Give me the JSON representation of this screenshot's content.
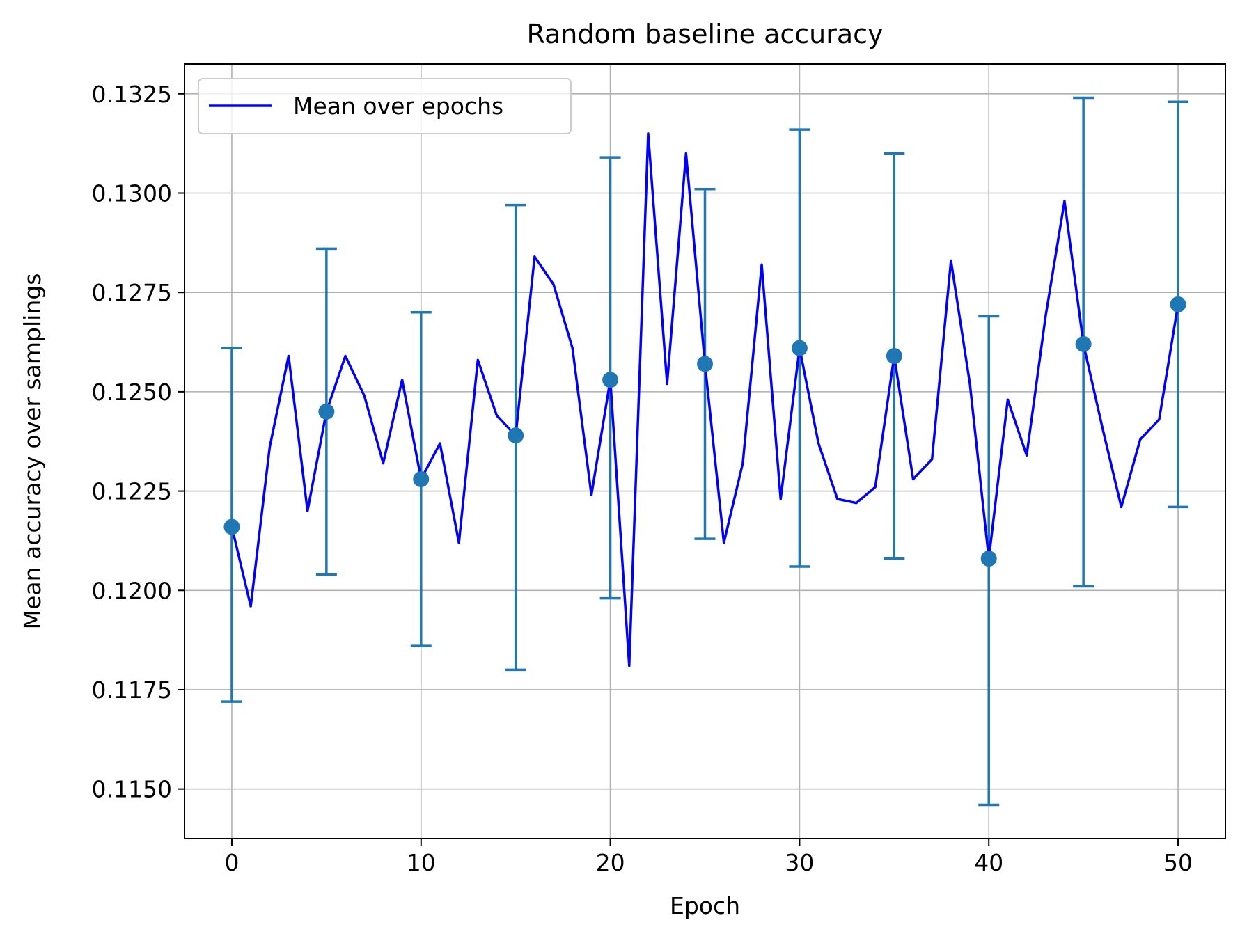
{
  "chart_data": {
    "type": "line",
    "title": "Random baseline accuracy",
    "xlabel": "Epoch",
    "ylabel": "Mean accuracy over samplings",
    "xlim": [
      -2.5,
      52.5
    ],
    "ylim": [
      0.11375,
      0.13325
    ],
    "xticks": [
      0,
      10,
      20,
      30,
      40,
      50
    ],
    "yticks": [
      0.115,
      0.1175,
      0.12,
      0.1225,
      0.125,
      0.1275,
      0.13,
      0.1325
    ],
    "ytick_format": 4,
    "grid": true,
    "legend": {
      "position": "top-left",
      "entries": [
        "Mean over epochs"
      ]
    },
    "series": [
      {
        "name": "Mean over epochs",
        "kind": "line",
        "color": "#0000ff",
        "x": [
          0,
          1,
          2,
          3,
          4,
          5,
          6,
          7,
          8,
          9,
          10,
          11,
          12,
          13,
          14,
          15,
          16,
          17,
          18,
          19,
          20,
          21,
          22,
          23,
          24,
          25,
          26,
          27,
          28,
          29,
          30,
          31,
          32,
          33,
          34,
          35,
          36,
          37,
          38,
          39,
          40,
          41,
          42,
          43,
          44,
          45,
          46,
          47,
          48,
          49,
          50
        ],
        "y": [
          0.1216,
          0.1196,
          0.1236,
          0.1259,
          0.122,
          0.1245,
          0.1259,
          0.1249,
          0.1232,
          0.1253,
          0.1228,
          0.1237,
          0.1212,
          0.1258,
          0.1244,
          0.1239,
          0.1284,
          0.1277,
          0.1261,
          0.1224,
          0.1253,
          0.1181,
          0.1315,
          0.1252,
          0.131,
          0.1257,
          0.1212,
          0.1232,
          0.1282,
          0.1223,
          0.1261,
          0.1237,
          0.1223,
          0.1222,
          0.1226,
          0.1259,
          0.1228,
          0.1233,
          0.1283,
          0.1252,
          0.1208,
          0.1248,
          0.1234,
          0.1269,
          0.1298,
          0.1262,
          0.1241,
          0.1221,
          0.1238,
          0.1243,
          0.1272
        ]
      },
      {
        "kind": "errorbar",
        "color": "#1f77b4",
        "x": [
          0,
          5,
          10,
          15,
          20,
          25,
          30,
          35,
          40,
          45,
          50
        ],
        "y": [
          0.1216,
          0.1245,
          0.1228,
          0.1239,
          0.1253,
          0.1257,
          0.1261,
          0.1259,
          0.1208,
          0.1262,
          0.1272
        ],
        "lower": [
          0.1172,
          0.1204,
          0.1186,
          0.118,
          0.1198,
          0.1213,
          0.1206,
          0.1208,
          0.1146,
          0.1201,
          0.1221
        ],
        "upper": [
          0.1261,
          0.1286,
          0.127,
          0.1297,
          0.1309,
          0.1301,
          0.1316,
          0.131,
          0.1269,
          0.1324,
          0.1323
        ]
      }
    ]
  }
}
